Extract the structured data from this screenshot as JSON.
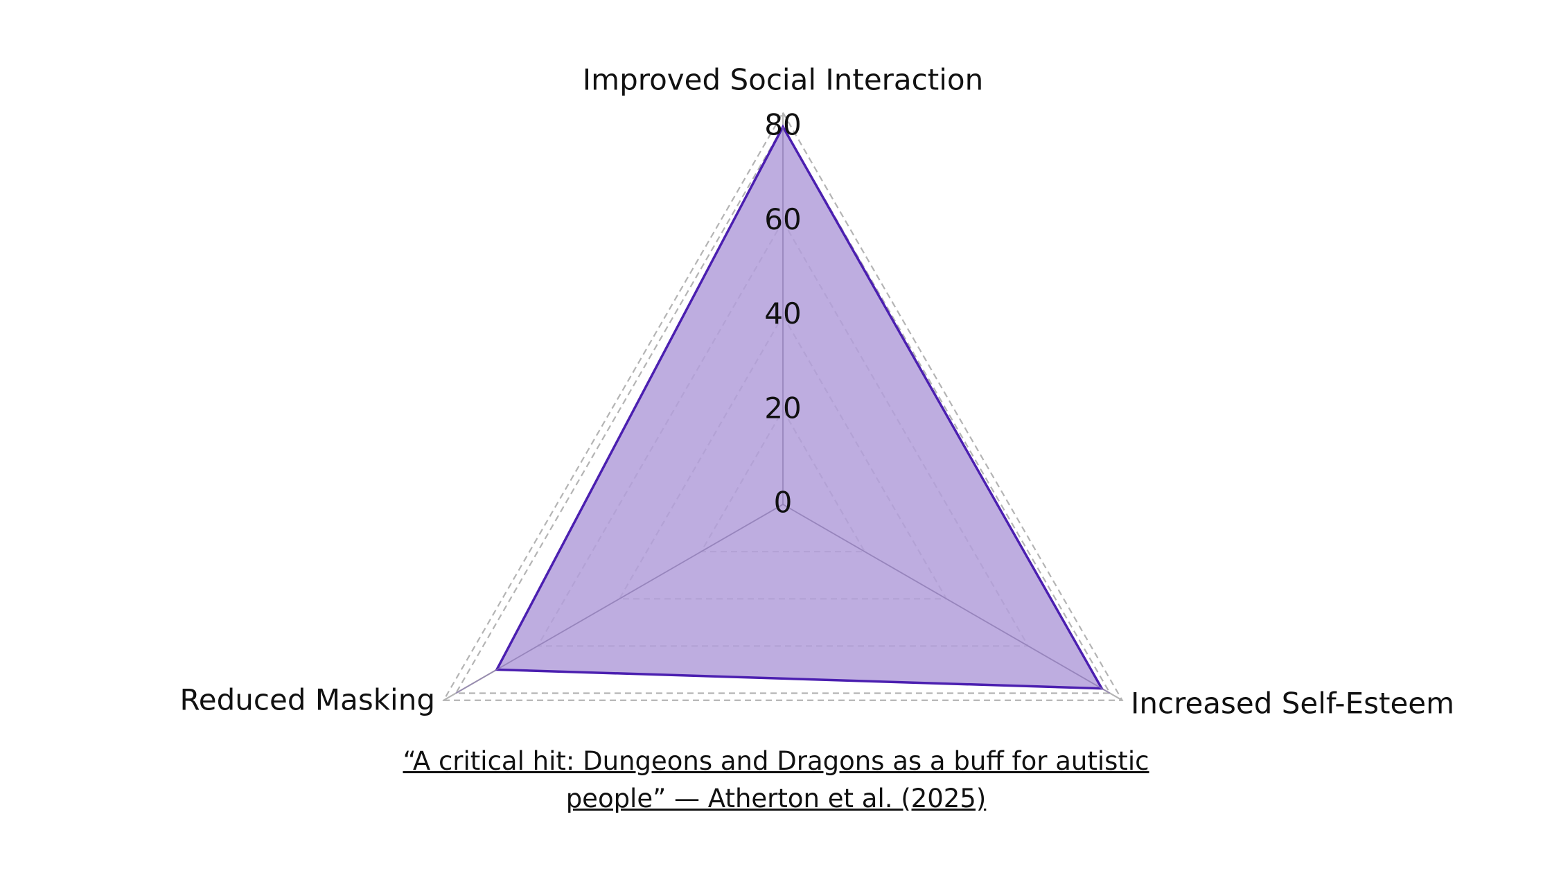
{
  "chart_data": {
    "type": "radar",
    "title": "",
    "axes": [
      "Improved Social Interaction",
      "Increased Self-Esteem",
      "Reduced Masking"
    ],
    "series": [
      {
        "values": [
          80,
          78,
          70
        ],
        "fill_color": "#b39fdb",
        "line_color": "#4b1fb0"
      }
    ],
    "radial_ticks": [
      "0",
      "20",
      "40",
      "60",
      "80"
    ],
    "rlim": [
      0,
      80
    ],
    "outer_grid_value": 83,
    "grid": true,
    "legend": "none"
  },
  "caption": {
    "line1": "“A critical hit: Dungeons and Dragons as a buff for autistic ",
    "line2": "people” — Atherton et al. (2025)"
  }
}
